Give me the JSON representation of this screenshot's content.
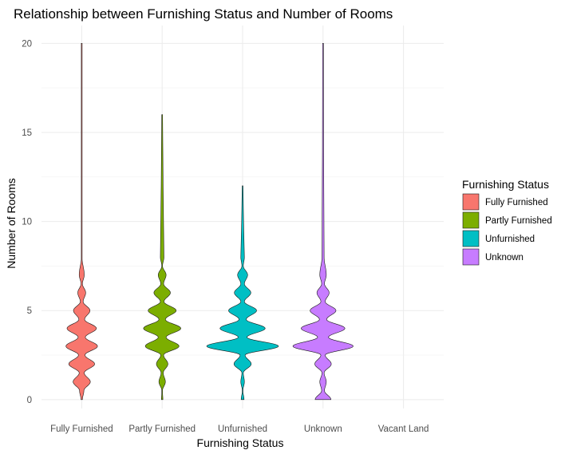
{
  "chart_data": {
    "type": "violin",
    "title": "Relationship between Furnishing Status and Number of Rooms",
    "xlabel": "Furnishing Status",
    "ylabel": "Number of Rooms",
    "categories": [
      "Fully Furnished",
      "Partly Furnished",
      "Unfurnished",
      "Unknown",
      "Vacant Land"
    ],
    "ylim": [
      -0.5,
      21
    ],
    "yticks": [
      0,
      5,
      10,
      15,
      20
    ],
    "grid": true,
    "legend": {
      "title": "Furnishing Status",
      "position": "right",
      "entries": [
        "Fully Furnished",
        "Partly Furnished",
        "Unfurnished",
        "Unknown"
      ]
    },
    "colors": {
      "Fully Furnished": "#F8766D",
      "Partly Furnished": "#7CAE00",
      "Unfurnished": "#00BFC4",
      "Unknown": "#C77CFF"
    },
    "series": [
      {
        "name": "Fully Furnished",
        "range": [
          0,
          20
        ],
        "density": [
          [
            0,
            0.02
          ],
          [
            0.5,
            0.06
          ],
          [
            1,
            0.24
          ],
          [
            1.5,
            0.07
          ],
          [
            2,
            0.36
          ],
          [
            2.5,
            0.09
          ],
          [
            3,
            0.44
          ],
          [
            3.5,
            0.1
          ],
          [
            4,
            0.41
          ],
          [
            4.5,
            0.08
          ],
          [
            5,
            0.23
          ],
          [
            5.5,
            0.04
          ],
          [
            6,
            0.11
          ],
          [
            6.5,
            0.02
          ],
          [
            7,
            0.07
          ],
          [
            8,
            0.008
          ],
          [
            20,
            0.003
          ]
        ]
      },
      {
        "name": "Partly Furnished",
        "range": [
          0,
          16
        ],
        "density": [
          [
            0,
            0.02
          ],
          [
            0.5,
            0.008
          ],
          [
            1,
            0.09
          ],
          [
            1.5,
            0.03
          ],
          [
            2,
            0.16
          ],
          [
            2.5,
            0.04
          ],
          [
            3,
            0.47
          ],
          [
            3.5,
            0.11
          ],
          [
            4,
            0.52
          ],
          [
            4.5,
            0.09
          ],
          [
            5,
            0.39
          ],
          [
            5.5,
            0.05
          ],
          [
            6,
            0.23
          ],
          [
            6.5,
            0.04
          ],
          [
            7,
            0.11
          ],
          [
            7.5,
            0.01
          ],
          [
            8,
            0.05
          ],
          [
            16,
            0.003
          ]
        ]
      },
      {
        "name": "Unfurnished",
        "range": [
          0,
          12
        ],
        "density": [
          [
            0,
            0.04
          ],
          [
            0.5,
            0.008
          ],
          [
            1,
            0.05
          ],
          [
            1.5,
            0.02
          ],
          [
            2,
            0.24
          ],
          [
            2.5,
            0.07
          ],
          [
            3,
            1.0
          ],
          [
            3.5,
            0.12
          ],
          [
            4,
            0.63
          ],
          [
            4.5,
            0.1
          ],
          [
            5,
            0.39
          ],
          [
            5.5,
            0.05
          ],
          [
            6,
            0.23
          ],
          [
            6.5,
            0.05
          ],
          [
            7,
            0.14
          ],
          [
            7.5,
            0.02
          ],
          [
            8,
            0.05
          ],
          [
            12,
            0.003
          ]
        ]
      },
      {
        "name": "Unknown",
        "range": [
          0,
          20
        ],
        "density": [
          [
            0,
            0.22
          ],
          [
            0.5,
            0.04
          ],
          [
            1,
            0.09
          ],
          [
            1.5,
            0.03
          ],
          [
            2,
            0.23
          ],
          [
            2.5,
            0.06
          ],
          [
            3,
            0.84
          ],
          [
            3.5,
            0.15
          ],
          [
            4,
            0.61
          ],
          [
            4.5,
            0.1
          ],
          [
            5,
            0.36
          ],
          [
            5.5,
            0.06
          ],
          [
            6,
            0.17
          ],
          [
            6.5,
            0.04
          ],
          [
            7,
            0.09
          ],
          [
            8,
            0.03
          ],
          [
            20,
            0.003
          ]
        ]
      }
    ]
  }
}
